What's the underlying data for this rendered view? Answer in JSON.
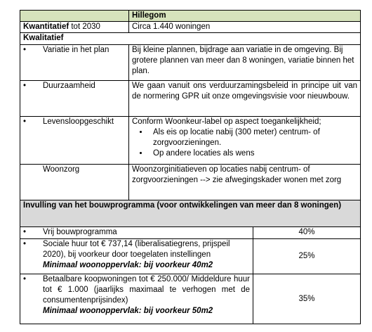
{
  "table": {
    "header": {
      "title": "Hillegom"
    },
    "quantitative": {
      "label": "Kwantitatief",
      "label_suffix": " tot 2030",
      "value": "Circa 1.440 woningen"
    },
    "qualitative": {
      "title": "Kwalitatief",
      "rows": [
        {
          "label": "Variatie in het plan",
          "text": "Bij kleine plannen, bijdrage aan variatie in de omgeving. Bij grotere plannen van meer dan 8 woningen, variatie binnen het plan."
        },
        {
          "label": "Duurzaamheid",
          "text": "We gaan vanuit ons verduurzamingsbeleid in principe uit van de normering GPR uit onze omgevingsvisie voor nieuwbouw."
        },
        {
          "label": "Levensloopgeschikt",
          "text": "Conform Woonkeur-label op aspect toegankelijkheid;",
          "subitems": [
            "Als eis op locatie nabij (300 meter) centrum- of zorgvoorzieningen.",
            "Op andere locaties als wens"
          ]
        },
        {
          "label": "Woonzorg",
          "text": "Woonzorginitiatieven op locaties nabij centrum- of zorgvoorzieningen --> zie afwegingskader wonen met zorg"
        }
      ]
    },
    "program": {
      "title": "Invulling van het bouwprogramma (voor ontwikkelingen van meer dan 8 woningen)",
      "rows": [
        {
          "text": "Vrij bouwprogramma",
          "share": "40%"
        },
        {
          "text": "Sociale huur tot € 737,14 (liberalisatiegrens, prijspeil 2020), bij voorkeur door toegelaten instellingen",
          "note": "Minimaal woonoppervlak: bij voorkeur 40m2",
          "share": "25%"
        },
        {
          "text": "Betaalbare koopwoningen tot € 250.000/ Middeldure huur tot € 1.000 (jaarlijks maximaal te verhogen met de consumentenprijsindex)",
          "note": "Minimaal woonoppervlak: bij voorkeur 50m2",
          "share": "35%"
        }
      ]
    }
  }
}
